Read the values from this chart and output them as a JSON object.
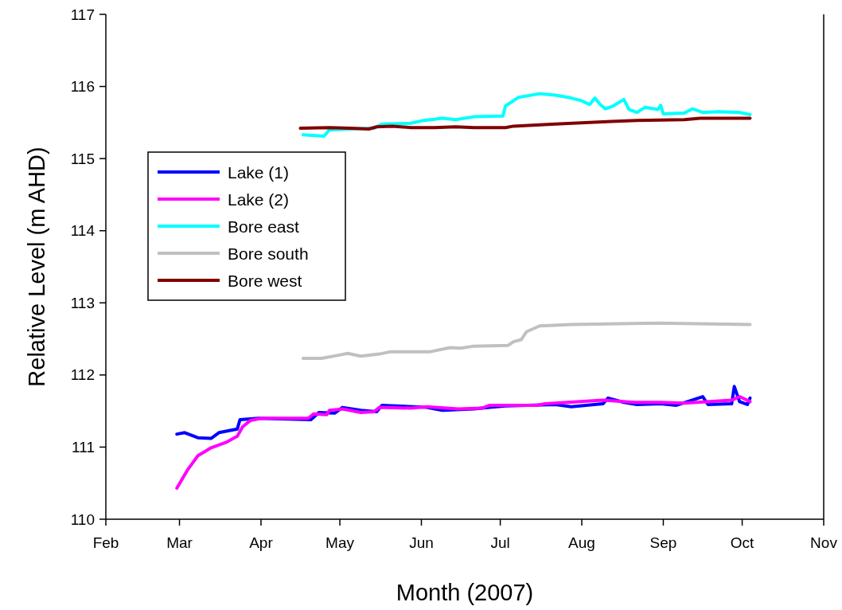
{
  "chart_data": {
    "type": "line",
    "xlabel": "Month (2007)",
    "ylabel": "Relative Level (m AHD)",
    "xlim": [
      "2007-02-01",
      "2007-11-01"
    ],
    "xticks": [
      {
        "value": "2007-02-01",
        "label": "Feb"
      },
      {
        "value": "2007-03-01",
        "label": "Mar"
      },
      {
        "value": "2007-04-01",
        "label": "Apr"
      },
      {
        "value": "2007-05-01",
        "label": "May"
      },
      {
        "value": "2007-06-01",
        "label": "Jun"
      },
      {
        "value": "2007-07-01",
        "label": "Jul"
      },
      {
        "value": "2007-08-01",
        "label": "Aug"
      },
      {
        "value": "2007-09-01",
        "label": "Sep"
      },
      {
        "value": "2007-10-01",
        "label": "Oct"
      },
      {
        "value": "2007-11-01",
        "label": "Nov"
      }
    ],
    "ylim": [
      110,
      117
    ],
    "yticks": [
      110,
      111,
      112,
      113,
      114,
      115,
      116,
      117
    ],
    "grid": false,
    "legend": "left",
    "marker": "none",
    "line_style": "solid",
    "series": [
      {
        "name": "Lake (1)",
        "color": "#0000ff",
        "x": [
          "2007-02-28",
          "2007-03-03",
          "2007-03-08",
          "2007-03-13",
          "2007-03-16",
          "2007-03-23",
          "2007-03-24",
          "2007-03-31",
          "2007-04-20",
          "2007-04-23",
          "2007-04-29",
          "2007-05-02",
          "2007-05-09",
          "2007-05-15",
          "2007-05-17",
          "2007-06-03",
          "2007-06-09",
          "2007-06-21",
          "2007-06-27",
          "2007-07-03",
          "2007-07-22",
          "2007-07-28",
          "2007-08-09",
          "2007-08-11",
          "2007-08-17",
          "2007-08-22",
          "2007-08-31",
          "2007-09-06",
          "2007-09-16",
          "2007-09-18",
          "2007-09-27",
          "2007-09-28",
          "2007-09-30",
          "2007-10-03",
          "2007-10-04"
        ],
        "values": [
          111.18,
          111.2,
          111.13,
          111.12,
          111.2,
          111.25,
          111.38,
          111.4,
          111.38,
          111.48,
          111.47,
          111.55,
          111.51,
          111.49,
          111.58,
          111.55,
          111.51,
          111.53,
          111.55,
          111.57,
          111.59,
          111.56,
          111.6,
          111.68,
          111.62,
          111.59,
          111.6,
          111.58,
          111.7,
          111.59,
          111.6,
          111.84,
          111.63,
          111.59,
          111.68
        ]
      },
      {
        "name": "Lake (2)",
        "color": "#ff00ff",
        "x": [
          "2007-02-28",
          "2007-03-04",
          "2007-03-08",
          "2007-03-13",
          "2007-03-19",
          "2007-03-23",
          "2007-03-25",
          "2007-03-28",
          "2007-04-01",
          "2007-04-19",
          "2007-04-21",
          "2007-04-26",
          "2007-04-27",
          "2007-04-30",
          "2007-05-02",
          "2007-05-09",
          "2007-05-14",
          "2007-05-16",
          "2007-05-28",
          "2007-06-03",
          "2007-06-15",
          "2007-06-24",
          "2007-06-27",
          "2007-07-06",
          "2007-07-15",
          "2007-07-18",
          "2007-08-09",
          "2007-08-21",
          "2007-08-31",
          "2007-09-09",
          "2007-09-27",
          "2007-09-30",
          "2007-10-04"
        ],
        "values": [
          110.43,
          110.68,
          110.88,
          110.99,
          111.07,
          111.15,
          111.28,
          111.37,
          111.4,
          111.4,
          111.46,
          111.45,
          111.51,
          111.52,
          111.53,
          111.48,
          111.49,
          111.55,
          111.54,
          111.56,
          111.53,
          111.54,
          111.58,
          111.58,
          111.58,
          111.6,
          111.65,
          111.62,
          111.62,
          111.61,
          111.65,
          111.7,
          111.63
        ]
      },
      {
        "name": "Bore east",
        "color": "#00ffff",
        "x": [
          "2007-04-17",
          "2007-04-25",
          "2007-04-27",
          "2007-05-04",
          "2007-05-14",
          "2007-05-17",
          "2007-05-28",
          "2007-06-02",
          "2007-06-09",
          "2007-06-14",
          "2007-06-21",
          "2007-07-02",
          "2007-07-03",
          "2007-07-08",
          "2007-07-16",
          "2007-07-22",
          "2007-07-28",
          "2007-08-01",
          "2007-08-04",
          "2007-08-06",
          "2007-08-08",
          "2007-08-10",
          "2007-08-13",
          "2007-08-17",
          "2007-08-19",
          "2007-08-22",
          "2007-08-25",
          "2007-08-30",
          "2007-08-31",
          "2007-09-01",
          "2007-09-09",
          "2007-09-12",
          "2007-09-16",
          "2007-09-22",
          "2007-09-30",
          "2007-10-04"
        ],
        "values": [
          115.33,
          115.31,
          115.4,
          115.41,
          115.42,
          115.48,
          115.49,
          115.53,
          115.56,
          115.54,
          115.58,
          115.59,
          115.73,
          115.85,
          115.9,
          115.88,
          115.84,
          115.8,
          115.75,
          115.84,
          115.75,
          115.69,
          115.73,
          115.82,
          115.68,
          115.64,
          115.71,
          115.68,
          115.74,
          115.62,
          115.63,
          115.69,
          115.64,
          115.65,
          115.64,
          115.61
        ]
      },
      {
        "name": "Bore south",
        "color": "#c0c0c0",
        "x": [
          "2007-04-17",
          "2007-04-24",
          "2007-04-30",
          "2007-05-04",
          "2007-05-09",
          "2007-05-16",
          "2007-05-20",
          "2007-05-29",
          "2007-06-04",
          "2007-06-12",
          "2007-06-16",
          "2007-06-21",
          "2007-07-04",
          "2007-07-06",
          "2007-07-09",
          "2007-07-11",
          "2007-07-16",
          "2007-07-28",
          "2007-08-30",
          "2007-10-04"
        ],
        "values": [
          112.23,
          112.23,
          112.27,
          112.3,
          112.26,
          112.29,
          112.32,
          112.32,
          112.32,
          112.38,
          112.37,
          112.4,
          112.41,
          112.46,
          112.49,
          112.6,
          112.68,
          112.7,
          112.72,
          112.7
        ]
      },
      {
        "name": "Bore west",
        "color": "#800000",
        "x": [
          "2007-04-16",
          "2007-04-27",
          "2007-05-05",
          "2007-05-12",
          "2007-05-15",
          "2007-05-21",
          "2007-05-28",
          "2007-06-06",
          "2007-06-14",
          "2007-06-21",
          "2007-07-03",
          "2007-07-06",
          "2007-07-22",
          "2007-08-09",
          "2007-08-22",
          "2007-09-09",
          "2007-09-15",
          "2007-10-04"
        ],
        "values": [
          115.42,
          115.43,
          115.42,
          115.41,
          115.44,
          115.45,
          115.43,
          115.43,
          115.44,
          115.43,
          115.43,
          115.45,
          115.48,
          115.51,
          115.53,
          115.54,
          115.56,
          115.56
        ]
      }
    ]
  }
}
